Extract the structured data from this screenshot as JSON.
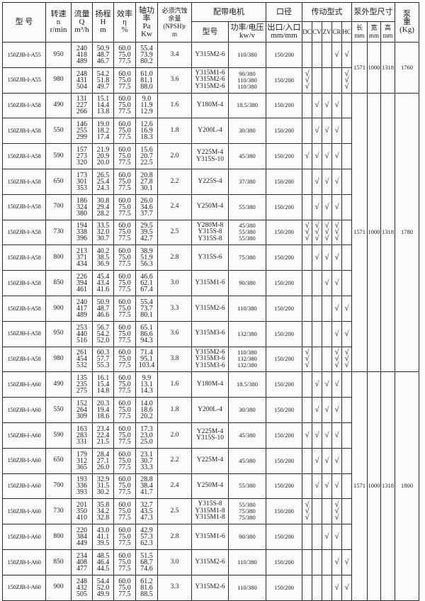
{
  "header": {
    "model": "型 号",
    "speed": "转速\nn\nr/min",
    "flow": "流量\nQ\nm³/h",
    "head": "扬程\nH\nm",
    "eff": "效率\nη\n%",
    "power": "轴功率\nPa\nKw",
    "npsh": "必须汽蚀\n余量\n(NPSH)r\nm",
    "motor_group": "配带电机",
    "motor_model": "型号",
    "motor_power": "功率/电压\nkw/v",
    "bore_group": "口径",
    "bore": "出口/入口\nmm/mm",
    "drive_group": "传动型式",
    "drive_types": [
      "DC",
      "CV",
      "ZV",
      "CR",
      "HC"
    ],
    "dim_group": "泵外型尺寸",
    "length": "长\nmm",
    "width": "宽\nmm",
    "height": "高\nmm",
    "weight": "泵\n重\n(Kg)"
  },
  "groups": [
    {
      "length": "1571",
      "width": "1000",
      "height": "1318",
      "weight": "1760",
      "rows": 2
    },
    {
      "length": "1571",
      "width": "1000",
      "height": "1318",
      "weight": "1780",
      "rows": 11
    },
    {
      "length": "1571",
      "width": "1000",
      "height": "1318",
      "weight": "1800",
      "rows": 9
    }
  ],
  "rows": [
    {
      "model": "150ZJB-I-A55",
      "speed": "950",
      "flow": "240\n418\n489",
      "head": "50.9\n48.7\n46.7",
      "eff": "60.0\n75.0\n77.5",
      "power": "55.4\n73.9\n80.2",
      "npsh": "3.4",
      "motor": "Y315M2-6",
      "motor_power": "110/380",
      "bore": "150/200",
      "checks": [
        "",
        "",
        "",
        "√",
        "√"
      ]
    },
    {
      "model": "150ZJB-I-A55",
      "speed": "980",
      "flow": "248\n431\n504",
      "head": "54.2\n51.8\n49.7",
      "eff": "60.0\n75.0\n77.5",
      "power": "61.0\n81.1\n88.0",
      "npsh": "3.6",
      "motor": "Y315M1-6\nY315M2-6\nY315M2-6",
      "motor_power": "90/380\n110/380\n110/380",
      "bore": "150/200",
      "checks": [
        "√\n√\n√",
        "",
        "",
        "",
        "√\n√\n√"
      ]
    },
    {
      "model": "150ZJB-I-A58",
      "speed": "490",
      "flow": "131\n227\n266",
      "head": "15.1\n14.4\n13.8",
      "eff": "60.0\n75.0\n77.5",
      "power": "9.0\n11.9\n12.9",
      "npsh": "1.6",
      "motor": "Y180M-4",
      "motor_power": "18.5/380",
      "bore": "150/200",
      "checks": [
        "",
        "√",
        "√",
        "√",
        ""
      ]
    },
    {
      "model": "150ZJB-I-A58",
      "speed": "550",
      "flow": "146\n255\n299",
      "head": "19.0\n18.2\n17.4",
      "eff": "60.0\n75.0\n77.5",
      "power": "12.6\n16.9\n18.3",
      "npsh": "1.8",
      "motor": "Y200L-4",
      "motor_power": "30/380",
      "bore": "150/200",
      "checks": [
        "",
        "√",
        "√",
        "√",
        ""
      ]
    },
    {
      "model": "150ZJB-I-A58",
      "speed": "590",
      "flow": "157\n273\n320",
      "head": "21.9\n20.9\n20.0",
      "eff": "60.0\n75.0\n77.5",
      "power": "15.6\n20.7\n22.5",
      "npsh": "2.0",
      "motor": "Y225M-4\nY315S-10",
      "motor_power": "45/380",
      "bore": "150/200",
      "checks": [
        "√",
        "√",
        "√",
        "√",
        ""
      ]
    },
    {
      "model": "150ZJB-I-A58",
      "speed": "650",
      "flow": "173\n301\n353",
      "head": "26.5\n25.4\n24.3",
      "eff": "60.0\n75.0\n77.5",
      "power": "20.8\n27.8\n30.1",
      "npsh": "2.2",
      "motor": "Y225S-4",
      "motor_power": "37/380",
      "bore": "150/200",
      "checks": [
        "",
        "√",
        "√",
        "√",
        ""
      ]
    },
    {
      "model": "150ZJB-I-A58",
      "speed": "700",
      "flow": "186\n324\n380",
      "head": "30.8\n29.4\n28.2",
      "eff": "60.0\n75.0\n77.5",
      "power": "26.0\n34.6\n37.7",
      "npsh": "2.4",
      "motor": "Y250M-4",
      "motor_power": "55/380",
      "bore": "150/200",
      "checks": [
        "",
        "√",
        "√",
        "√",
        ""
      ]
    },
    {
      "model": "150ZJB-I-A58",
      "speed": "730",
      "flow": "194\n338\n396",
      "head": "33.5\n32.0\n30.7",
      "eff": "60.0\n75.0\n77.5",
      "power": "29.5\n39.5\n42.7",
      "npsh": "2.5",
      "motor": "Y280M-8\nY315S-8\nY315S-8",
      "motor_power": "45/380\n55/380\n55/380",
      "bore": "150/200",
      "checks": [
        "√\n√\n√",
        "√\n√\n√",
        "√\n√\n√",
        "√\n√\n√",
        ""
      ]
    },
    {
      "model": "150ZJB-I-A58",
      "speed": "800",
      "flow": "213\n371\n434",
      "head": "40.2\n38.5\n36.9",
      "eff": "60.0\n75.0\n77.5",
      "power": "38.9\n51.9\n56.3",
      "npsh": "2.8",
      "motor": "Y315S-6",
      "motor_power": "75/380",
      "bore": "150/200",
      "checks": [
        "",
        "√",
        "√",
        "√",
        ""
      ]
    },
    {
      "model": "150ZJB-I-A58",
      "speed": "850",
      "flow": "226\n394\n461",
      "head": "45.4\n43.4\n41.6",
      "eff": "60.0\n75.0\n77.5",
      "power": "46.6\n62.1\n67.4",
      "npsh": "3.0",
      "motor": "Y315M1-6",
      "motor_power": "90/380",
      "bore": "150/200",
      "checks": [
        "",
        "",
        "√",
        "√",
        ""
      ]
    },
    {
      "model": "150ZJB-I-A58",
      "speed": "900",
      "flow": "240\n417\n489",
      "head": "50.9\n48.7\n46.6",
      "eff": "60.0\n75.0\n77.5",
      "power": "55.4\n73.7\n80.1",
      "npsh": "3.3",
      "motor": "Y315M2-6",
      "motor_power": "110/380",
      "bore": "150/200",
      "checks": [
        "",
        "",
        "",
        "√",
        "√"
      ]
    },
    {
      "model": "150ZJB-I-A58",
      "speed": "950",
      "flow": "253\n440\n516",
      "head": "56.7\n54.2\n52.0",
      "eff": "60.0\n75.0\n77.5",
      "power": "65.1\n86.6\n94.3",
      "npsh": "3.6",
      "motor": "Y315M3-6",
      "motor_power": "132/380",
      "bore": "150/200",
      "checks": [
        "",
        "",
        "",
        "√",
        "√"
      ]
    },
    {
      "model": "150ZJB-I-A58",
      "speed": "980",
      "flow": "261\n454\n532",
      "head": "60.3\n57.7\n55.3",
      "eff": "60.0\n75.0\n77.5",
      "power": "71.4\n95.1\n103.4",
      "npsh": "3.8",
      "motor": "Y315M2-6\nY315M3-6\nY315M3-6",
      "motor_power": "110/380\n132/380\n132/380",
      "bore": "150/200",
      "checks": [
        "√\n√\n√",
        "",
        "",
        "√\n√\n√",
        "√\n√\n√"
      ]
    },
    {
      "model": "150ZJB-I-A60",
      "speed": "490",
      "flow": "135\n235\n275",
      "head": "16.1\n15.4\n14.8",
      "eff": "60.0\n75.0\n77.5",
      "power": "9.9\n13.1\n14.3",
      "npsh": "1.6",
      "motor": "Y180M-4",
      "motor_power": "18.5/380",
      "bore": "150/200",
      "checks": [
        "",
        "√",
        "√",
        "√",
        ""
      ]
    },
    {
      "model": "150ZJB-I-A60",
      "speed": "550",
      "flow": "152\n264\n309",
      "head": "20.3\n19.4\n18.6",
      "eff": "60.0\n75.0\n77.5",
      "power": "14.0\n18.6\n20.2",
      "npsh": "1.8",
      "motor": "Y200L-4",
      "motor_power": "30/380",
      "bore": "150/200",
      "checks": [
        "",
        "√",
        "√",
        "√",
        ""
      ]
    },
    {
      "model": "150ZJB-I-A60",
      "speed": "590",
      "flow": "163\n283\n331",
      "head": "23.4\n22.4\n21.5",
      "eff": "60.0\n75.0\n77.5",
      "power": "17.3\n23.0\n25.0",
      "npsh": "2.0",
      "motor": "Y225M-4\nY315S-10",
      "motor_power": "45/380",
      "bore": "150/200",
      "checks": [
        "√",
        "√",
        "√",
        "√",
        ""
      ]
    },
    {
      "model": "150ZJB-I-A60",
      "speed": "650",
      "flow": "179\n312\n365",
      "head": "28.4\n27.1\n26.0",
      "eff": "60.0\n75.0\n77.5",
      "power": "23.1\n30.7\n33.3",
      "npsh": "2.2",
      "motor": "Y225M-4",
      "motor_power": "45/380",
      "bore": "150/200",
      "checks": [
        "",
        "√",
        "√",
        "√",
        ""
      ]
    },
    {
      "model": "150ZJB-I-A60",
      "speed": "700",
      "flow": "193\n336\n393",
      "head": "32.9\n31.5\n30.2",
      "eff": "60.0\n75.0\n77.5",
      "power": "28.8\n38.4\n41.7",
      "npsh": "2.4",
      "motor": "Y250M-4",
      "motor_power": "55/380",
      "bore": "150/200",
      "checks": [
        "",
        "√",
        "√",
        "√",
        ""
      ]
    },
    {
      "model": "150ZJB-I-A60",
      "speed": "730",
      "flow": "201\n350\n410",
      "head": "35.8\n34.2\n32.8",
      "eff": "60.0\n75.0\n77.5",
      "power": "32.7\n43.5\n47.3",
      "npsh": "2.5",
      "motor": "Y315S-8\nY315M1-8\nY315M1-8",
      "motor_power": "55/380\n75/380\n75/380",
      "bore": "150/200",
      "checks": [
        "√\n√\n√",
        "",
        "",
        "√\n√\n√",
        ""
      ]
    },
    {
      "model": "150ZJB-I-A60",
      "speed": "800",
      "flow": "220\n384\n449",
      "head": "43.0\n41.1\n39.5",
      "eff": "60.0\n75.0\n77.5",
      "power": "42.9\n57.3\n62.3",
      "npsh": "2.8",
      "motor": "Y315M1-6",
      "motor_power": "90/380",
      "bore": "150/200",
      "checks": [
        "",
        "",
        "√",
        "√",
        ""
      ]
    },
    {
      "model": "150ZJB-I-A60",
      "speed": "850",
      "flow": "234\n408\n477",
      "head": "48.5\n46.4\n44.5",
      "eff": "60.0\n75.0\n77.5",
      "power": "51.5\n68.7\n74.6",
      "npsh": "3.0",
      "motor": "Y315M2-6",
      "motor_power": "110/380",
      "bore": "150/200",
      "checks": [
        "",
        "",
        "",
        "√",
        "√"
      ]
    },
    {
      "model": "150ZJB-I-A60",
      "speed": "900",
      "flow": "248\n432\n505",
      "head": "54.4\n52.0\n49.9",
      "eff": "60.0\n75.0\n77.5",
      "power": "61.2\n81.6\n88.5",
      "npsh": "3.3",
      "motor": "Y315M2-6",
      "motor_power": "110/380",
      "bore": "150/200",
      "checks": [
        "",
        "",
        "",
        "√",
        "√"
      ]
    }
  ]
}
